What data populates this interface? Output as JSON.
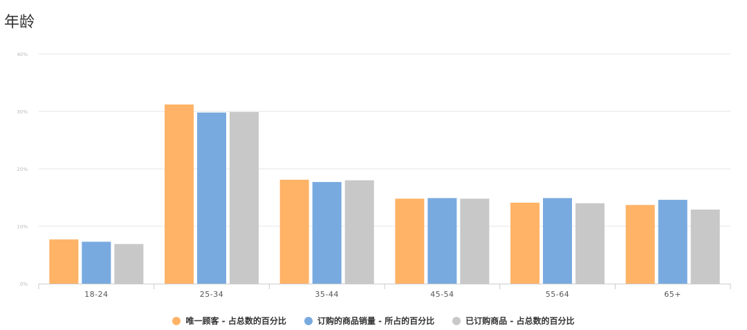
{
  "chart_data": {
    "type": "bar",
    "title": "年龄",
    "categories": [
      "18-24",
      "25-34",
      "35-44",
      "45-54",
      "55-64",
      "65+"
    ],
    "series": [
      {
        "name": "唯一顾客 - 占总数的百分比",
        "color": "#FFB366",
        "values": [
          7.7,
          31.2,
          18.1,
          14.8,
          14.1,
          13.7
        ]
      },
      {
        "name": "订购的商品销量 - 所占的百分比",
        "color": "#78AAE0",
        "values": [
          7.3,
          29.8,
          17.7,
          14.9,
          14.9,
          14.6
        ]
      },
      {
        "name": "已订购商品 - 占总数的百分比",
        "color": "#C8C8C8",
        "values": [
          6.9,
          29.9,
          18.0,
          14.8,
          14.0,
          12.9
        ]
      }
    ],
    "ylim": [
      0,
      40
    ],
    "yticks": [
      "0%",
      "10%",
      "20%",
      "30%",
      "40%"
    ],
    "grid": true,
    "legend": "bottom-center"
  }
}
